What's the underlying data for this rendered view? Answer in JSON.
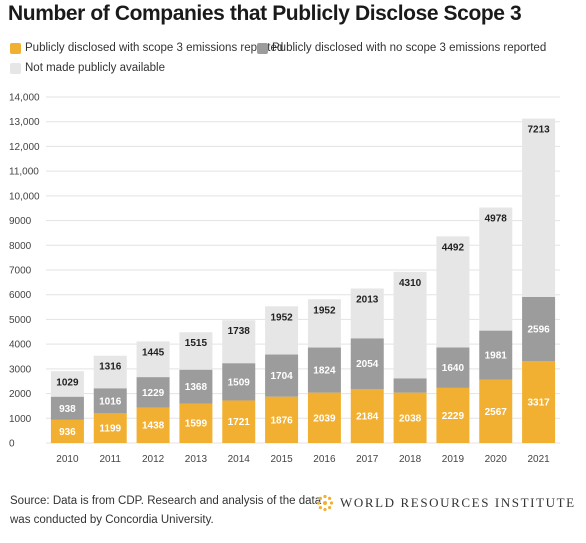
{
  "title": "Number of Companies that Publicly Disclose Scope 3",
  "legend": {
    "scope3": "Publicly disclosed with scope 3 emissions reported",
    "noscope3": "Publicly disclosed with no scope 3 emissions reported",
    "notavail": "Not made publicly available"
  },
  "colors": {
    "scope3": "#f2b032",
    "noscope3": "#9c9c9c",
    "notavail": "#e6e6e6",
    "grid": "#e3e3e3"
  },
  "source": "Source: Data is from CDP. Research and analysis of the data was conducted by Concordia University.",
  "brand": {
    "name": "WORLD RESOURCES INSTITUTE",
    "logo_icon": "wri-logo-icon"
  },
  "chart_data": {
    "type": "bar",
    "stacked": true,
    "categories": [
      "2010",
      "2011",
      "2012",
      "2013",
      "2014",
      "2015",
      "2016",
      "2017",
      "2018",
      "2019",
      "2020",
      "2021"
    ],
    "series": [
      {
        "name": "Publicly disclosed with scope 3 emissions reported",
        "key": "scope3",
        "values": [
          936,
          1199,
          1438,
          1599,
          1721,
          1876,
          2039,
          2184,
          2038,
          2229,
          2567,
          3317
        ]
      },
      {
        "name": "Publicly disclosed with no scope 3 emissions reported",
        "key": "noscope3",
        "values": [
          938,
          1016,
          1229,
          1368,
          1509,
          1704,
          1824,
          2054,
          580,
          1640,
          1981,
          2596
        ]
      },
      {
        "name": "Not made publicly available",
        "key": "notavail",
        "values": [
          1029,
          1316,
          1445,
          1515,
          1738,
          1952,
          1952,
          2013,
          4310,
          4492,
          4978,
          7213
        ]
      }
    ],
    "data_labels": {
      "scope3": [
        936,
        1199,
        1438,
        1599,
        1721,
        1876,
        2039,
        2184,
        2038,
        2229,
        2567,
        3317
      ],
      "noscope3": [
        938,
        1016,
        1229,
        1368,
        1509,
        1704,
        1824,
        2054,
        null,
        1640,
        1981,
        2596
      ],
      "notavail": [
        1029,
        1316,
        1445,
        1515,
        1738,
        1952,
        1952,
        2013,
        4310,
        4492,
        4978,
        7213
      ]
    },
    "yticks": [
      0,
      1000,
      2000,
      3000,
      4000,
      5000,
      6000,
      7000,
      8000,
      9000,
      10000,
      11000,
      12000,
      13000,
      14000
    ],
    "ytick_labels": [
      "0",
      "1000",
      "2000",
      "3000",
      "4000",
      "5000",
      "6000",
      "7000",
      "8000",
      "9000",
      "10,000",
      "11,000",
      "12,000",
      "13,000",
      "14,000"
    ],
    "ylim": [
      0,
      14000
    ],
    "grid": true,
    "legend_position": "top-left"
  }
}
